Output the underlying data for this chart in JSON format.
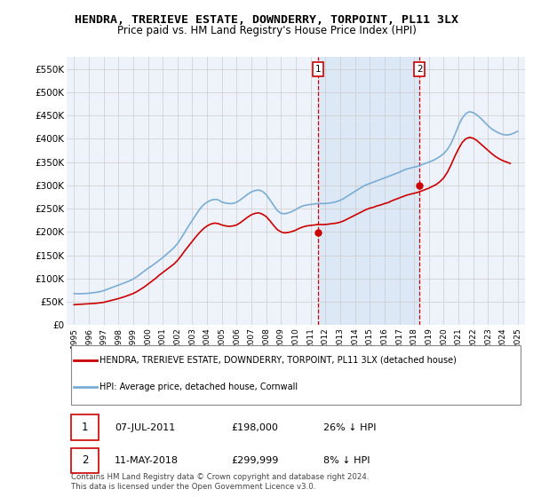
{
  "title": "HENDRA, TRERIEVE ESTATE, DOWNDERRY, TORPOINT, PL11 3LX",
  "subtitle": "Price paid vs. HM Land Registry's House Price Index (HPI)",
  "title_fontsize": 9.5,
  "subtitle_fontsize": 8.5,
  "ylim": [
    0,
    575000
  ],
  "yticks": [
    0,
    50000,
    100000,
    150000,
    200000,
    250000,
    300000,
    350000,
    400000,
    450000,
    500000,
    550000
  ],
  "ytick_labels": [
    "£0",
    "£50K",
    "£100K",
    "£150K",
    "£200K",
    "£250K",
    "£300K",
    "£350K",
    "£400K",
    "£450K",
    "£500K",
    "£550K"
  ],
  "xlim_start": 1994.5,
  "xlim_end": 2025.5,
  "xtick_years": [
    1995,
    1996,
    1997,
    1998,
    1999,
    2000,
    2001,
    2002,
    2003,
    2004,
    2005,
    2006,
    2007,
    2008,
    2009,
    2010,
    2011,
    2012,
    2013,
    2014,
    2015,
    2016,
    2017,
    2018,
    2019,
    2020,
    2021,
    2022,
    2023,
    2024,
    2025
  ],
  "hpi_color": "#7aadd4",
  "sale_color": "#cc0000",
  "dashed_line_color": "#cc0000",
  "background_color": "#eef2fa",
  "highlight_color": "#dce8f5",
  "grid_color": "#cccccc",
  "sale1_x": 2011.52,
  "sale1_y": 198000,
  "sale2_x": 2018.36,
  "sale2_y": 299999,
  "legend_label_sale": "HENDRA, TRERIEVE ESTATE, DOWNDERRY, TORPOINT, PL11 3LX (detached house)",
  "legend_label_hpi": "HPI: Average price, detached house, Cornwall",
  "annotation1_num": "1",
  "annotation1_date": "07-JUL-2011",
  "annotation1_price": "£198,000",
  "annotation1_hpi": "26% ↓ HPI",
  "annotation2_num": "2",
  "annotation2_date": "11-MAY-2018",
  "annotation2_price": "£299,999",
  "annotation2_hpi": "8% ↓ HPI",
  "footer1": "Contains HM Land Registry data © Crown copyright and database right 2024.",
  "footer2": "This data is licensed under the Open Government Licence v3.0.",
  "hpi_data_x": [
    1995.0,
    1995.25,
    1995.5,
    1995.75,
    1996.0,
    1996.25,
    1996.5,
    1996.75,
    1997.0,
    1997.25,
    1997.5,
    1997.75,
    1998.0,
    1998.25,
    1998.5,
    1998.75,
    1999.0,
    1999.25,
    1999.5,
    1999.75,
    2000.0,
    2000.25,
    2000.5,
    2000.75,
    2001.0,
    2001.25,
    2001.5,
    2001.75,
    2002.0,
    2002.25,
    2002.5,
    2002.75,
    2003.0,
    2003.25,
    2003.5,
    2003.75,
    2004.0,
    2004.25,
    2004.5,
    2004.75,
    2005.0,
    2005.25,
    2005.5,
    2005.75,
    2006.0,
    2006.25,
    2006.5,
    2006.75,
    2007.0,
    2007.25,
    2007.5,
    2007.75,
    2008.0,
    2008.25,
    2008.5,
    2008.75,
    2009.0,
    2009.25,
    2009.5,
    2009.75,
    2010.0,
    2010.25,
    2010.5,
    2010.75,
    2011.0,
    2011.25,
    2011.5,
    2011.75,
    2012.0,
    2012.25,
    2012.5,
    2012.75,
    2013.0,
    2013.25,
    2013.5,
    2013.75,
    2014.0,
    2014.25,
    2014.5,
    2014.75,
    2015.0,
    2015.25,
    2015.5,
    2015.75,
    2016.0,
    2016.25,
    2016.5,
    2016.75,
    2017.0,
    2017.25,
    2017.5,
    2017.75,
    2018.0,
    2018.25,
    2018.5,
    2018.75,
    2019.0,
    2019.25,
    2019.5,
    2019.75,
    2020.0,
    2020.25,
    2020.5,
    2020.75,
    2021.0,
    2021.25,
    2021.5,
    2021.75,
    2022.0,
    2022.25,
    2022.5,
    2022.75,
    2023.0,
    2023.25,
    2023.5,
    2023.75,
    2024.0,
    2024.25,
    2024.5,
    2024.75,
    2025.0
  ],
  "hpi_data_y": [
    68000,
    67500,
    67500,
    68000,
    68500,
    69500,
    70500,
    72000,
    74000,
    77000,
    80000,
    83000,
    86000,
    89000,
    92000,
    95000,
    99000,
    104000,
    110000,
    116000,
    122000,
    127000,
    133000,
    139000,
    145000,
    152000,
    159000,
    166000,
    175000,
    187000,
    200000,
    213000,
    225000,
    237000,
    249000,
    258000,
    264000,
    268000,
    270000,
    269000,
    264000,
    262000,
    261000,
    261000,
    264000,
    269000,
    275000,
    281000,
    286000,
    289000,
    290000,
    287000,
    280000,
    269000,
    257000,
    246000,
    240000,
    239000,
    241000,
    244000,
    248000,
    253000,
    256000,
    258000,
    259000,
    260000,
    261000,
    261000,
    261000,
    262000,
    263000,
    265000,
    268000,
    272000,
    277000,
    282000,
    287000,
    292000,
    297000,
    301000,
    304000,
    307000,
    310000,
    313000,
    316000,
    319000,
    322000,
    325000,
    328000,
    332000,
    335000,
    337000,
    339000,
    341000,
    344000,
    347000,
    350000,
    353000,
    357000,
    362000,
    368000,
    377000,
    390000,
    408000,
    428000,
    444000,
    454000,
    458000,
    456000,
    451000,
    444000,
    436000,
    428000,
    421000,
    416000,
    412000,
    409000,
    408000,
    409000,
    412000,
    416000
  ],
  "sale_data_x": [
    1995.0,
    1995.25,
    1995.5,
    1995.75,
    1996.0,
    1996.25,
    1996.5,
    1996.75,
    1997.0,
    1997.25,
    1997.5,
    1997.75,
    1998.0,
    1998.25,
    1998.5,
    1998.75,
    1999.0,
    1999.25,
    1999.5,
    1999.75,
    2000.0,
    2000.25,
    2000.5,
    2000.75,
    2001.0,
    2001.25,
    2001.5,
    2001.75,
    2002.0,
    2002.25,
    2002.5,
    2002.75,
    2003.0,
    2003.25,
    2003.5,
    2003.75,
    2004.0,
    2004.25,
    2004.5,
    2004.75,
    2005.0,
    2005.25,
    2005.5,
    2005.75,
    2006.0,
    2006.25,
    2006.5,
    2006.75,
    2007.0,
    2007.25,
    2007.5,
    2007.75,
    2008.0,
    2008.25,
    2008.5,
    2008.75,
    2009.0,
    2009.25,
    2009.5,
    2009.75,
    2010.0,
    2010.25,
    2010.5,
    2010.75,
    2011.0,
    2011.25,
    2011.5,
    2011.75,
    2012.0,
    2012.25,
    2012.5,
    2012.75,
    2013.0,
    2013.25,
    2013.5,
    2013.75,
    2014.0,
    2014.25,
    2014.5,
    2014.75,
    2015.0,
    2015.25,
    2015.5,
    2015.75,
    2016.0,
    2016.25,
    2016.5,
    2016.75,
    2017.0,
    2017.25,
    2017.5,
    2017.75,
    2018.0,
    2018.25,
    2018.5,
    2018.75,
    2019.0,
    2019.25,
    2019.5,
    2019.75,
    2020.0,
    2020.25,
    2020.5,
    2020.75,
    2021.0,
    2021.25,
    2021.5,
    2021.75,
    2022.0,
    2022.25,
    2022.5,
    2022.75,
    2023.0,
    2023.25,
    2023.5,
    2023.75,
    2024.0,
    2024.25,
    2024.5
  ],
  "sale_data_y": [
    44000,
    44500,
    45000,
    45500,
    46000,
    46500,
    47000,
    48000,
    49000,
    51000,
    53000,
    55000,
    57000,
    59500,
    62000,
    65000,
    68000,
    72000,
    77000,
    82000,
    88000,
    94000,
    100000,
    107000,
    113000,
    119000,
    125000,
    131000,
    139000,
    149000,
    160000,
    170000,
    180000,
    190000,
    199000,
    207000,
    213000,
    217000,
    219000,
    218000,
    215000,
    213000,
    212000,
    213000,
    215000,
    220000,
    226000,
    232000,
    237000,
    240000,
    241000,
    238000,
    233000,
    224000,
    214000,
    205000,
    200000,
    198000,
    199000,
    201000,
    204000,
    208000,
    211000,
    213000,
    214000,
    215000,
    216000,
    216000,
    216000,
    217000,
    218000,
    219000,
    221000,
    224000,
    228000,
    232000,
    236000,
    240000,
    244000,
    248000,
    251000,
    253000,
    256000,
    258000,
    261000,
    263000,
    267000,
    270000,
    273000,
    276000,
    279000,
    281000,
    283000,
    285000,
    288000,
    291000,
    294000,
    298000,
    302000,
    308000,
    316000,
    328000,
    344000,
    362000,
    378000,
    392000,
    400000,
    403000,
    401000,
    396000,
    389000,
    382000,
    375000,
    368000,
    362000,
    357000,
    353000,
    350000,
    347000
  ]
}
